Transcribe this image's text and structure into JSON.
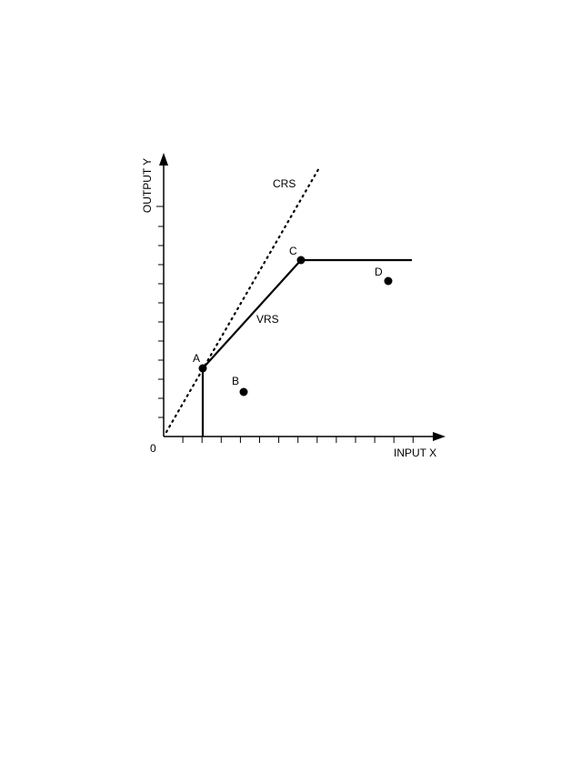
{
  "axes": {
    "x_label": "INPUT X",
    "y_label": "OUTPUT Y",
    "origin": "0"
  },
  "points": [
    {
      "label": "A"
    },
    {
      "label": "B"
    },
    {
      "label": "C"
    },
    {
      "label": "D"
    }
  ],
  "frontiers": [
    {
      "label": "CRS"
    },
    {
      "label": "VRS"
    }
  ]
}
